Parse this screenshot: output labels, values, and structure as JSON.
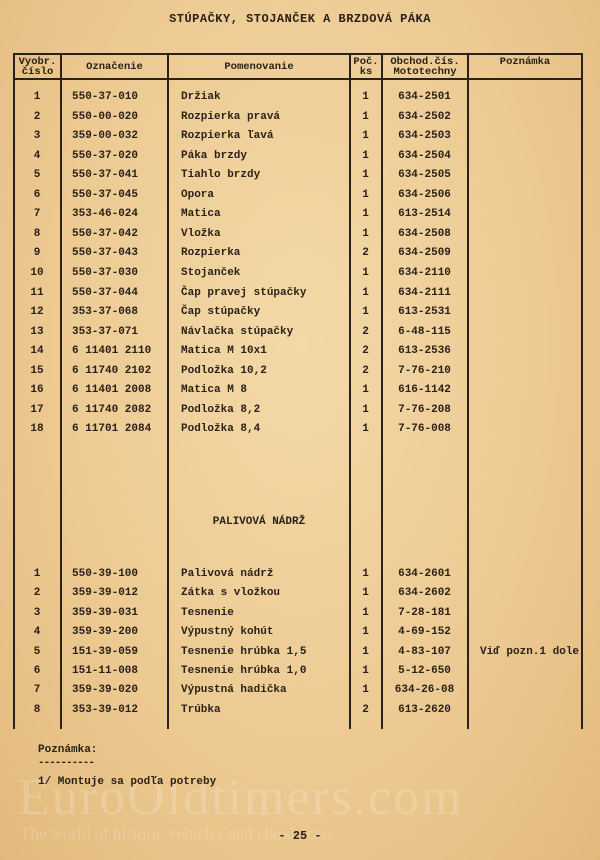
{
  "title": "STÚPAČKY, STOJANČEK  A BRZDOVÁ PÁKA",
  "table": {
    "headers": {
      "no": "Vyobr. číslo",
      "code": "Označenie",
      "name": "Pomenovanie",
      "qty": "Poč. ks",
      "trade": "Obchod.čís. Mototechny",
      "note": "Poznámka"
    },
    "rows": [
      {
        "no": "1",
        "code": "550-37-010",
        "name": "Držiak",
        "qty": "1",
        "trade": "634-2501",
        "note": ""
      },
      {
        "no": "2",
        "code": "550-00-020",
        "name": "Rozpierka pravá",
        "qty": "1",
        "trade": "634-2502",
        "note": ""
      },
      {
        "no": "3",
        "code": "359-00-032",
        "name": "Rozpierka ľavá",
        "qty": "1",
        "trade": "634-2503",
        "note": ""
      },
      {
        "no": "4",
        "code": "550-37-020",
        "name": "Páka brzdy",
        "qty": "1",
        "trade": "634-2504",
        "note": ""
      },
      {
        "no": "5",
        "code": "550-37-041",
        "name": "Tiahlo brzdy",
        "qty": "1",
        "trade": "634-2505",
        "note": ""
      },
      {
        "no": "6",
        "code": "550-37-045",
        "name": "Opora",
        "qty": "1",
        "trade": "634-2506",
        "note": ""
      },
      {
        "no": "7",
        "code": "353-46-024",
        "name": "Matica",
        "qty": "1",
        "trade": "613-2514",
        "note": ""
      },
      {
        "no": "8",
        "code": "550-37-042",
        "name": "Vložka",
        "qty": "1",
        "trade": "634-2508",
        "note": ""
      },
      {
        "no": "9",
        "code": "550-37-043",
        "name": "Rozpierka",
        "qty": "2",
        "trade": "634-2509",
        "note": ""
      },
      {
        "no": "10",
        "code": "550-37-030",
        "name": "Stojanček",
        "qty": "1",
        "trade": "634-2110",
        "note": ""
      },
      {
        "no": "11",
        "code": "550-37-044",
        "name": "Čap pravej stúpačky",
        "qty": "1",
        "trade": "634-2111",
        "note": ""
      },
      {
        "no": "12",
        "code": "353-37-068",
        "name": "Čap stúpačky",
        "qty": "1",
        "trade": "613-2531",
        "note": ""
      },
      {
        "no": "13",
        "code": "353-37-071",
        "name": "Návlačka stúpačky",
        "qty": "2",
        "trade": "6-48-115",
        "note": ""
      },
      {
        "no": "14",
        "code": "6 11401 2110",
        "name": "Matica M 10x1",
        "qty": "2",
        "trade": "613-2536",
        "note": ""
      },
      {
        "no": "15",
        "code": "6 11740 2102",
        "name": "Podložka 10,2",
        "qty": "2",
        "trade": "7-76-210",
        "note": ""
      },
      {
        "no": "16",
        "code": "6 11401 2008",
        "name": "Matica M 8",
        "qty": "1",
        "trade": "616-1142",
        "note": ""
      },
      {
        "no": "17",
        "code": "6 11740 2082",
        "name": "Podložka 8,2",
        "qty": "1",
        "trade": "7-76-208",
        "note": ""
      },
      {
        "no": "18",
        "code": "6 11701 2084",
        "name": "Podložka 8,4",
        "qty": "1",
        "trade": "7-76-008",
        "note": ""
      }
    ],
    "section2_title": "PALIVOVÁ NÁDRŽ",
    "rows2": [
      {
        "no": "1",
        "code": "550-39-100",
        "name": "Palivová nádrž",
        "qty": "1",
        "trade": "634-2601",
        "note": ""
      },
      {
        "no": "2",
        "code": "359-39-012",
        "name": "Zátka s vložkou",
        "qty": "1",
        "trade": "634-2602",
        "note": ""
      },
      {
        "no": "3",
        "code": "359-39-031",
        "name": "Tesnenie",
        "qty": "1",
        "trade": "7-28-181",
        "note": ""
      },
      {
        "no": "4",
        "code": "359-39-200",
        "name": "Výpustný kohút",
        "qty": "1",
        "trade": "4-69-152",
        "note": ""
      },
      {
        "no": "5",
        "code": "151-39-059",
        "name": "Tesnenie hrúbka 1,5",
        "qty": "1",
        "trade": "4-83-107",
        "note": "Viď pozn.1 dole"
      },
      {
        "no": "6",
        "code": "151-11-008",
        "name": "Tesnenie hrúbka 1,0",
        "qty": "1",
        "trade": "5-12-650",
        "note": ""
      },
      {
        "no": "7",
        "code": "359-39-020",
        "name": "Výpustná hadička",
        "qty": "1",
        "trade": "634-26-08",
        "note": ""
      },
      {
        "no": "8",
        "code": "353-39-012",
        "name": "Trúbka",
        "qty": "2",
        "trade": "613-2620",
        "note": ""
      }
    ]
  },
  "footnote": {
    "heading": "Poznámka:",
    "underline": "----------",
    "text": "1/ Montuje sa podľa potreby"
  },
  "page_number": "- 25 -",
  "watermark": {
    "main": "EuroOldtimers.com",
    "tagline": "The world of historic vehicles and classic cars"
  }
}
